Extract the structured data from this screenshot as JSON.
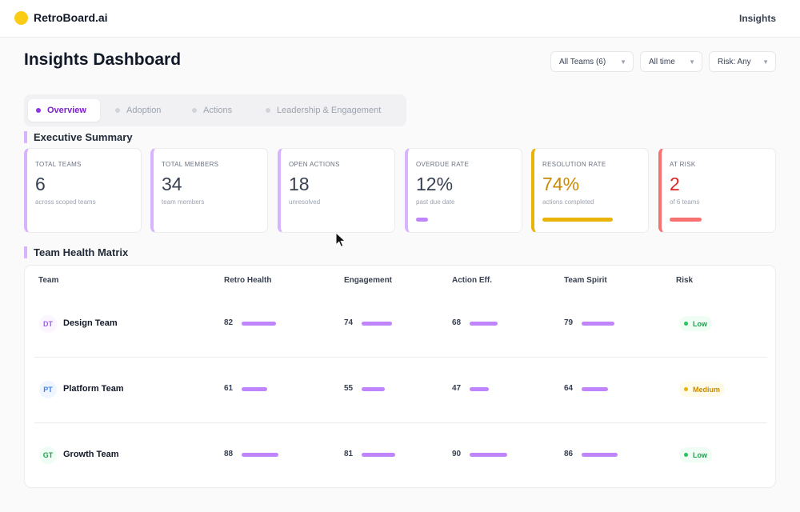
{
  "app": {
    "name": "RetroBoard.ai"
  },
  "nav": {
    "insights_label": "Insights"
  },
  "page": {
    "title": "Insights Dashboard"
  },
  "filters": [
    {
      "label": "All Teams (6)"
    },
    {
      "label": "All time"
    },
    {
      "label": "Risk: Any"
    }
  ],
  "tabs": [
    {
      "label": "Overview",
      "active": true
    },
    {
      "label": "Adoption",
      "active": false
    },
    {
      "label": "Actions",
      "active": false
    },
    {
      "label": "Leadership & Engagement",
      "active": false
    }
  ],
  "executive_summary": {
    "title": "Executive Summary",
    "cards": [
      {
        "label": "TOTAL TEAMS",
        "value": "6",
        "sub": "across scoped teams"
      },
      {
        "label": "TOTAL MEMBERS",
        "value": "34",
        "sub": "team members"
      },
      {
        "label": "OPEN ACTIONS",
        "value": "18",
        "sub": "unresolved"
      },
      {
        "label": "OVERDUE RATE",
        "value": "12%",
        "sub": "past due date",
        "progress": 0.16
      },
      {
        "label": "RESOLUTION RATE",
        "value": "74%",
        "sub": "actions completed",
        "progress": 0.96,
        "accent": "#eab308"
      },
      {
        "label": "AT RISK",
        "value": "2",
        "sub": "of 6 teams",
        "progress": 0.43,
        "accent": "#f87171"
      }
    ]
  },
  "health_matrix": {
    "title": "Team Health Matrix",
    "columns": [
      "Team",
      "Retro Health",
      "Engagement",
      "Action Eff.",
      "Team Spirit",
      "Risk"
    ],
    "rows": [
      {
        "initials": "DT",
        "name": "Design Team",
        "retro_health": 82,
        "engagement": 74,
        "action_eff": 68,
        "team_spirit": 79,
        "risk": "Low",
        "avatar_bg": "#faf5ff",
        "avatar_fg": "#a855f7"
      },
      {
        "initials": "PT",
        "name": "Platform Team",
        "retro_health": 61,
        "engagement": 55,
        "action_eff": 47,
        "team_spirit": 64,
        "risk": "Medium",
        "avatar_bg": "#eff6ff",
        "avatar_fg": "#3b82f6"
      },
      {
        "initials": "GT",
        "name": "Growth Team",
        "retro_health": 88,
        "engagement": 81,
        "action_eff": 90,
        "team_spirit": 86,
        "risk": "Low",
        "avatar_bg": "#f0fdf4",
        "avatar_fg": "#16a34a"
      }
    ]
  }
}
